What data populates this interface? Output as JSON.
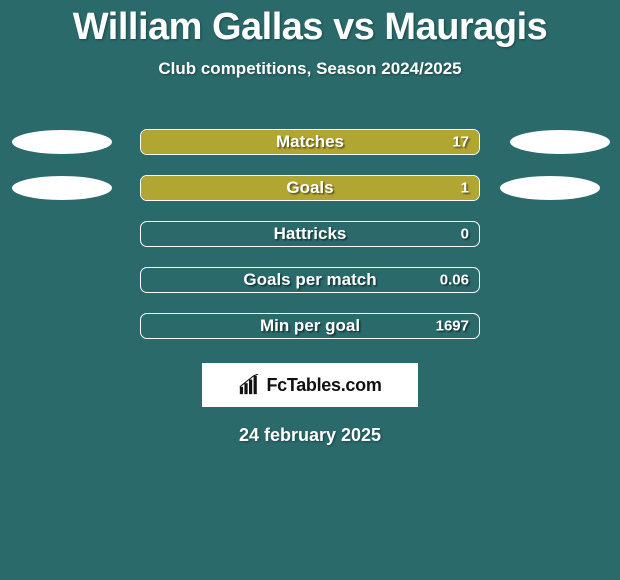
{
  "background_color": "#2a6a6a",
  "title": "William Gallas vs Mauragis",
  "subtitle": "Club competitions, Season 2024/2025",
  "title_fontsize": 38,
  "subtitle_fontsize": 17,
  "ellipse": {
    "left_color": "#ffffff",
    "right_color": "#ffffff",
    "width": 100,
    "height": 24
  },
  "bar_style": {
    "track_border_color": "#ffffff",
    "track_height": 26,
    "track_radius": 7,
    "fill_color": "#b1a631",
    "label_color": "#ffffff",
    "value_color": "#ffffff",
    "label_fontsize": 17,
    "value_fontsize": 15
  },
  "rows": [
    {
      "label": "Matches",
      "value": "17",
      "fill_pct": 100,
      "left_ellipse": true,
      "right_ellipse": true,
      "right_ellipse_right": 10
    },
    {
      "label": "Goals",
      "value": "1",
      "fill_pct": 100,
      "left_ellipse": true,
      "right_ellipse": true,
      "right_ellipse_right": 20
    },
    {
      "label": "Hattricks",
      "value": "0",
      "fill_pct": 0,
      "left_ellipse": false,
      "right_ellipse": false
    },
    {
      "label": "Goals per match",
      "value": "0.06",
      "fill_pct": 0,
      "left_ellipse": false,
      "right_ellipse": false
    },
    {
      "label": "Min per goal",
      "value": "1697",
      "fill_pct": 0,
      "left_ellipse": false,
      "right_ellipse": false
    }
  ],
  "badge": {
    "text": "FcTables.com",
    "text_color": "#111111",
    "bg_color": "#ffffff",
    "icon_name": "bar-chart-icon"
  },
  "date": "24 february 2025"
}
